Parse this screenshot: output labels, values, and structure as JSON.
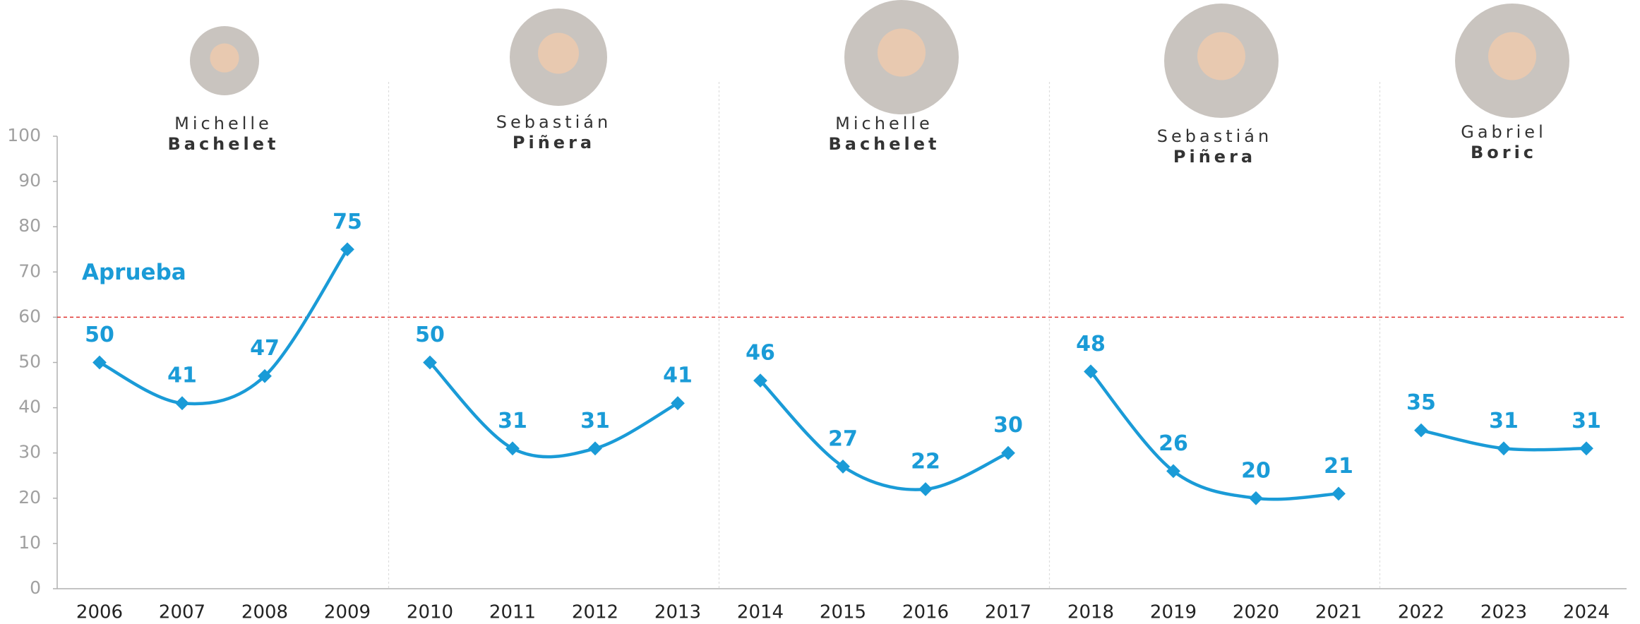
{
  "chart_data": {
    "type": "line",
    "categories": [
      "2006",
      "2007",
      "2008",
      "2009",
      "2010",
      "2011",
      "2012",
      "2013",
      "2014",
      "2015",
      "2016",
      "2017",
      "2018",
      "2019",
      "2020",
      "2021",
      "2022",
      "2023",
      "2024"
    ],
    "series": [
      {
        "first_name": "Michelle",
        "last_name": "Bachelet",
        "color": "#1a9bd7",
        "values": [
          50,
          41,
          47,
          75,
          null,
          null,
          null,
          null,
          null,
          null,
          null,
          null,
          null,
          null,
          null,
          null,
          null,
          null,
          null
        ]
      },
      {
        "first_name": "Sebastián",
        "last_name": "Piñera",
        "color": "#1a9bd7",
        "values": [
          null,
          null,
          null,
          null,
          50,
          31,
          31,
          41,
          null,
          null,
          null,
          null,
          null,
          null,
          null,
          null,
          null,
          null,
          null
        ]
      },
      {
        "first_name": "Michelle",
        "last_name": "Bachelet",
        "color": "#1a9bd7",
        "values": [
          null,
          null,
          null,
          null,
          null,
          null,
          null,
          null,
          46,
          27,
          22,
          30,
          null,
          null,
          null,
          null,
          null,
          null,
          null
        ]
      },
      {
        "first_name": "Sebastián",
        "last_name": "Piñera",
        "color": "#1a9bd7",
        "values": [
          null,
          null,
          null,
          null,
          null,
          null,
          null,
          null,
          null,
          null,
          null,
          null,
          48,
          26,
          20,
          21,
          null,
          null,
          null
        ]
      },
      {
        "first_name": "Gabriel",
        "last_name": "Boric",
        "color": "#1a9bd7",
        "values": [
          null,
          null,
          null,
          null,
          null,
          null,
          null,
          null,
          null,
          null,
          null,
          null,
          null,
          null,
          null,
          null,
          35,
          31,
          31
        ]
      }
    ],
    "ylim": [
      0,
      100
    ],
    "yticks": [
      0,
      10,
      20,
      30,
      40,
      50,
      60,
      70,
      80,
      90,
      100
    ],
    "reference_line": 60,
    "reference_color": "#e0322f",
    "annotation": "Aprueba"
  }
}
